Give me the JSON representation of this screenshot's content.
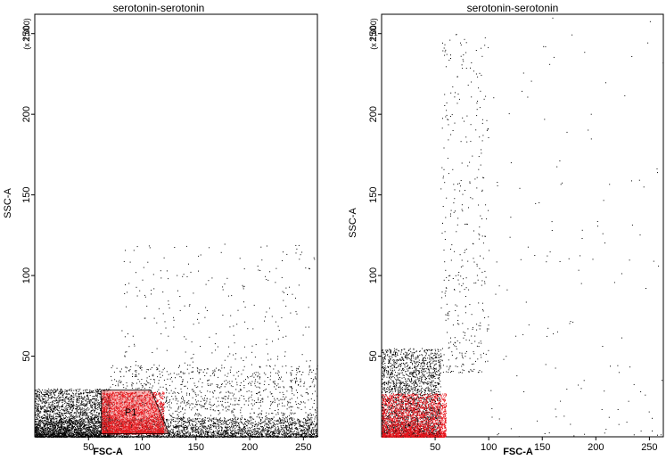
{
  "chart_data": [
    {
      "type": "scatter",
      "title": "serotonin-serotonin",
      "xlabel": "FSC-A",
      "ylabel": "SSC-A",
      "y_multiplier_label": "(x 1,000)",
      "xlim": [
        0,
        263
      ],
      "ylim": [
        0,
        262
      ],
      "xticks": [
        50,
        100,
        150,
        200,
        250
      ],
      "yticks": [
        50,
        100,
        150,
        200,
        250
      ],
      "grid": false,
      "series": [
        {
          "color": "#000000",
          "clusters": [
            {
              "x_range": [
                0,
                263
              ],
              "y_range": [
                0,
                12
              ],
              "density": "very high"
            },
            {
              "x_range": [
                0,
                70
              ],
              "y_range": [
                0,
                30
              ],
              "density": "very high"
            },
            {
              "x_range": [
                70,
                263
              ],
              "y_range": [
                0,
                45
              ],
              "density": "high"
            },
            {
              "x_range": [
                80,
                260
              ],
              "y_range": [
                20,
                120
              ],
              "density": "sparse"
            }
          ]
        },
        {
          "name": "P1",
          "color": "#e8131b",
          "clusters": [
            {
              "x_range": [
                62,
                120
              ],
              "y_range": [
                2,
                28
              ],
              "density": "very high"
            }
          ]
        }
      ],
      "gate": {
        "name": "P1",
        "vertices": [
          [
            62,
            29
          ],
          [
            108,
            29
          ],
          [
            125,
            2
          ],
          [
            62,
            2
          ]
        ]
      }
    },
    {
      "type": "scatter",
      "title": "serotonin-serotonin",
      "xlabel": "FSC-A",
      "ylabel": "SSC-A",
      "y_multiplier_label": "(x 1,000)",
      "xlim": [
        0,
        263
      ],
      "ylim": [
        0,
        262
      ],
      "xticks": [
        50,
        100,
        150,
        200,
        250
      ],
      "yticks": [
        50,
        100,
        150,
        200,
        250
      ],
      "grid": false,
      "series": [
        {
          "color": "#000000",
          "clusters": [
            {
              "x_range": [
                0,
                55
              ],
              "y_range": [
                0,
                55
              ],
              "density": "very high"
            },
            {
              "x_range": [
                55,
                100
              ],
              "y_range": [
                40,
                250
              ],
              "density": "sparse"
            },
            {
              "x_range": [
                100,
                263
              ],
              "y_range": [
                0,
                260
              ],
              "density": "very sparse"
            }
          ]
        },
        {
          "color": "#e8131b",
          "clusters": [
            {
              "x_range": [
                0,
                60
              ],
              "y_range": [
                0,
                27
              ],
              "density": "very high"
            }
          ]
        }
      ]
    }
  ]
}
